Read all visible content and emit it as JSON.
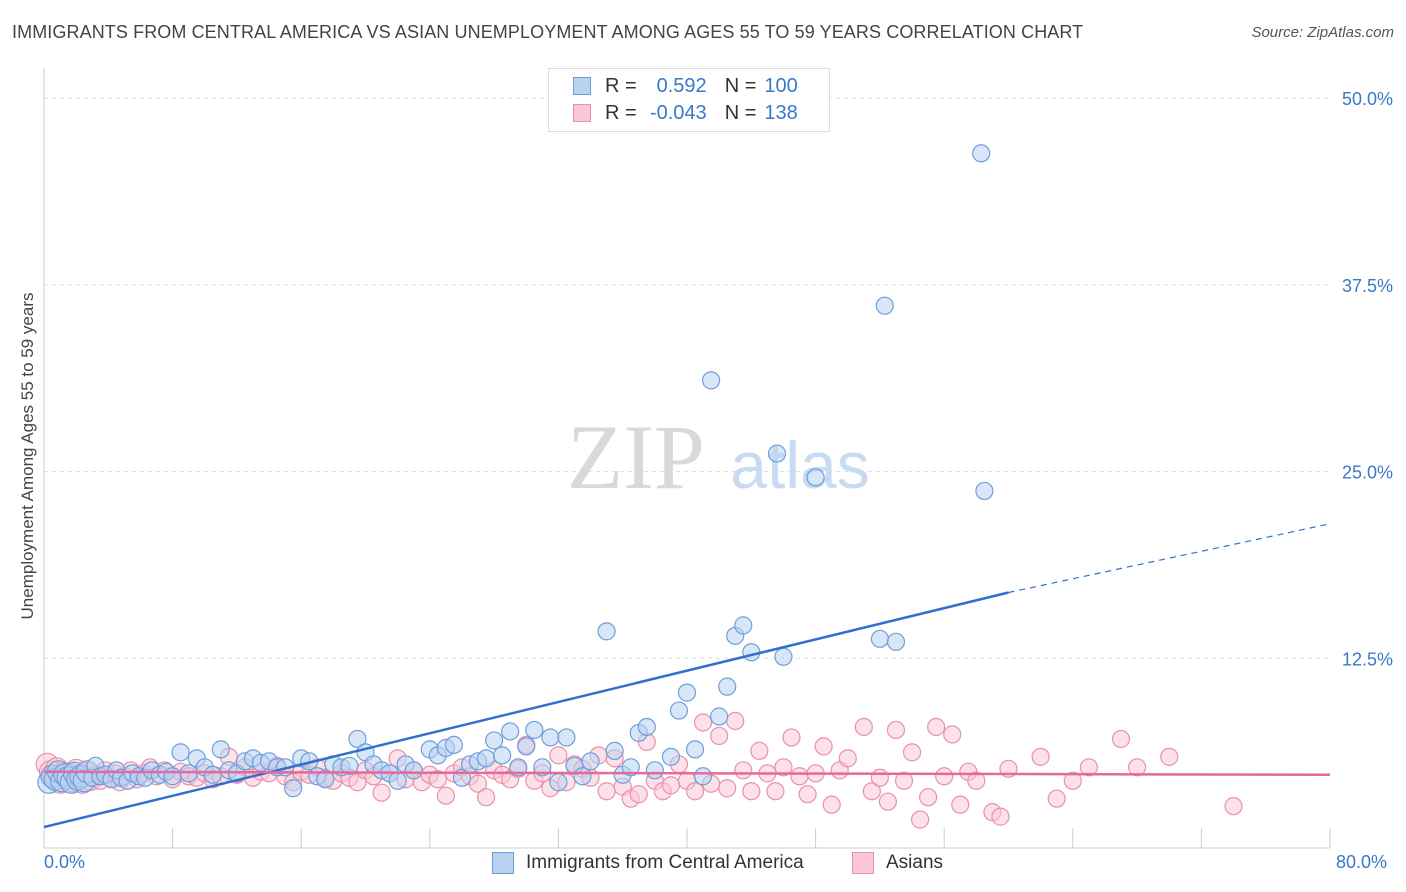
{
  "title": "IMMIGRANTS FROM CENTRAL AMERICA VS ASIAN UNEMPLOYMENT AMONG AGES 55 TO 59 YEARS CORRELATION CHART",
  "source": "Source: ZipAtlas.com",
  "watermark": {
    "zip": "ZIP",
    "atlas": "atlas"
  },
  "legend": {
    "r_label": "R =",
    "n_label": "N =",
    "series": [
      {
        "name": "Immigrants from Central America",
        "r": "0.592",
        "n": "100"
      },
      {
        "name": "Asians",
        "r": "-0.043",
        "n": "138"
      }
    ]
  },
  "colors": {
    "blue_fill": "#b9d2f2",
    "blue_stroke": "#6d9fdb",
    "blue_line": "#2f6fce",
    "pink_fill": "#f9c8d6",
    "pink_stroke": "#e990ab",
    "pink_line": "#e5699a",
    "tick_text": "#3a78c8",
    "grid": "#dddddd"
  },
  "chart_data": {
    "type": "scatter",
    "title": "IMMIGRANTS FROM CENTRAL AMERICA VS ASIAN UNEMPLOYMENT AMONG AGES 55 TO 59 YEARS CORRELATION CHART",
    "xlabel": "",
    "ylabel": "Unemployment Among Ages 55 to 59 years",
    "xlim": [
      0,
      80
    ],
    "ylim": [
      0,
      52
    ],
    "x_tick_labels": [
      "0.0%",
      "80.0%"
    ],
    "y_ticks": [
      12.5,
      25.0,
      37.5,
      50.0
    ],
    "y_tick_labels": [
      "12.5%",
      "25.0%",
      "37.5%",
      "50.0%"
    ],
    "grid": true,
    "series": [
      {
        "name": "Immigrants from Central America",
        "color": "blue",
        "points": [
          [
            0.3,
            4.2
          ],
          [
            0.5,
            4.6
          ],
          [
            0.7,
            4.4
          ],
          [
            0.9,
            4.9
          ],
          [
            1.1,
            4.3
          ],
          [
            1.3,
            4.7
          ],
          [
            1.5,
            4.5
          ],
          [
            1.7,
            4.2
          ],
          [
            1.9,
            4.8
          ],
          [
            2.1,
            4.4
          ],
          [
            2.3,
            4.6
          ],
          [
            2.5,
            4.3
          ],
          [
            2.7,
            4.9
          ],
          [
            3.0,
            4.5
          ],
          [
            3.2,
            5.3
          ],
          [
            3.5,
            4.6
          ],
          [
            3.8,
            4.7
          ],
          [
            4.2,
            4.4
          ],
          [
            4.5,
            5.0
          ],
          [
            4.8,
            4.5
          ],
          [
            5.2,
            4.3
          ],
          [
            5.5,
            4.8
          ],
          [
            5.9,
            4.6
          ],
          [
            6.3,
            4.5
          ],
          [
            6.7,
            5.0
          ],
          [
            7.2,
            4.7
          ],
          [
            7.6,
            4.9
          ],
          [
            8.0,
            4.6
          ],
          [
            8.5,
            6.2
          ],
          [
            9.0,
            4.8
          ],
          [
            9.5,
            5.8
          ],
          [
            10.0,
            5.2
          ],
          [
            10.5,
            4.7
          ],
          [
            11.0,
            6.4
          ],
          [
            11.5,
            5.0
          ],
          [
            12.0,
            4.8
          ],
          [
            12.5,
            5.6
          ],
          [
            13.0,
            5.8
          ],
          [
            13.5,
            5.5
          ],
          [
            14.0,
            5.6
          ],
          [
            14.5,
            5.2
          ],
          [
            15.0,
            5.2
          ],
          [
            15.5,
            3.8
          ],
          [
            16.0,
            5.8
          ],
          [
            16.5,
            5.6
          ],
          [
            17.0,
            4.6
          ],
          [
            17.5,
            4.4
          ],
          [
            18.0,
            5.4
          ],
          [
            18.5,
            5.2
          ],
          [
            19.0,
            5.3
          ],
          [
            19.5,
            7.1
          ],
          [
            20.0,
            6.2
          ],
          [
            20.5,
            5.4
          ],
          [
            21.0,
            5.0
          ],
          [
            21.5,
            4.8
          ],
          [
            22.0,
            4.3
          ],
          [
            22.5,
            5.4
          ],
          [
            23.0,
            5.0
          ],
          [
            24.0,
            6.4
          ],
          [
            24.5,
            6.0
          ],
          [
            25.0,
            6.5
          ],
          [
            25.5,
            6.7
          ],
          [
            26.0,
            4.5
          ],
          [
            26.5,
            5.4
          ],
          [
            27.0,
            5.6
          ],
          [
            27.5,
            5.8
          ],
          [
            28.0,
            7.0
          ],
          [
            28.5,
            6.0
          ],
          [
            29.0,
            7.6
          ],
          [
            29.5,
            5.2
          ],
          [
            30.0,
            6.6
          ],
          [
            30.5,
            7.7
          ],
          [
            31.0,
            5.2
          ],
          [
            31.5,
            7.2
          ],
          [
            32.0,
            4.2
          ],
          [
            32.5,
            7.2
          ],
          [
            33.0,
            5.3
          ],
          [
            33.5,
            4.6
          ],
          [
            34.0,
            5.6
          ],
          [
            35.0,
            14.3
          ],
          [
            35.5,
            6.3
          ],
          [
            36.0,
            4.7
          ],
          [
            36.5,
            5.2
          ],
          [
            37.0,
            7.5
          ],
          [
            37.5,
            7.9
          ],
          [
            38.0,
            5.0
          ],
          [
            39.0,
            5.9
          ],
          [
            39.5,
            9.0
          ],
          [
            40.0,
            10.2
          ],
          [
            40.5,
            6.4
          ],
          [
            41.0,
            4.6
          ],
          [
            41.5,
            31.1
          ],
          [
            42.0,
            8.6
          ],
          [
            42.5,
            10.6
          ],
          [
            43.0,
            14.0
          ],
          [
            44.0,
            12.9
          ],
          [
            46.0,
            12.6
          ],
          [
            48.0,
            24.6
          ],
          [
            52.0,
            13.8
          ],
          [
            53.0,
            13.6
          ]
        ],
        "outliers": [
          [
            58.3,
            46.3
          ],
          [
            52.3,
            36.1
          ],
          [
            45.6,
            26.2
          ],
          [
            58.5,
            23.7
          ],
          [
            43.5,
            14.7
          ]
        ],
        "trend": {
          "x_start": 0,
          "y_start": 1.2,
          "x_end": 60,
          "y_end": 16.9,
          "dashed_to_x": 80,
          "dashed_to_y": 21.5
        }
      },
      {
        "name": "Asians",
        "color": "pink",
        "points": [
          [
            0.2,
            5.4
          ],
          [
            0.4,
            4.9
          ],
          [
            0.6,
            4.6
          ],
          [
            0.8,
            5.1
          ],
          [
            1.0,
            4.2
          ],
          [
            1.2,
            4.8
          ],
          [
            1.4,
            4.5
          ],
          [
            1.6,
            4.7
          ],
          [
            1.8,
            4.3
          ],
          [
            2.0,
            5.0
          ],
          [
            2.2,
            4.6
          ],
          [
            2.4,
            4.2
          ],
          [
            2.6,
            4.8
          ],
          [
            2.9,
            4.4
          ],
          [
            3.2,
            4.7
          ],
          [
            3.5,
            4.3
          ],
          [
            3.8,
            5.0
          ],
          [
            4.1,
            4.5
          ],
          [
            4.4,
            4.8
          ],
          [
            4.7,
            4.2
          ],
          [
            5.0,
            4.6
          ],
          [
            5.4,
            5.0
          ],
          [
            5.8,
            4.4
          ],
          [
            6.2,
            4.8
          ],
          [
            6.6,
            5.2
          ],
          [
            7.0,
            4.6
          ],
          [
            7.5,
            5.0
          ],
          [
            8.0,
            4.4
          ],
          [
            8.5,
            4.9
          ],
          [
            9.0,
            4.6
          ],
          [
            9.5,
            4.5
          ],
          [
            10.0,
            4.8
          ],
          [
            10.5,
            4.4
          ],
          [
            11.0,
            4.6
          ],
          [
            11.5,
            5.9
          ],
          [
            12.0,
            4.7
          ],
          [
            12.5,
            5.2
          ],
          [
            13.0,
            4.5
          ],
          [
            13.5,
            4.9
          ],
          [
            14.0,
            4.8
          ],
          [
            14.5,
            5.3
          ],
          [
            15.0,
            4.6
          ],
          [
            15.5,
            4.2
          ],
          [
            16.0,
            4.9
          ],
          [
            16.5,
            4.7
          ],
          [
            17.0,
            5.2
          ],
          [
            17.5,
            4.5
          ],
          [
            18.0,
            4.3
          ],
          [
            18.5,
            4.8
          ],
          [
            19.0,
            4.5
          ],
          [
            19.5,
            4.2
          ],
          [
            20.0,
            5.0
          ],
          [
            20.5,
            4.6
          ],
          [
            21.0,
            3.5
          ],
          [
            21.5,
            4.8
          ],
          [
            22.0,
            5.8
          ],
          [
            22.5,
            4.4
          ],
          [
            23.0,
            5.0
          ],
          [
            23.5,
            4.2
          ],
          [
            24.0,
            4.7
          ],
          [
            24.5,
            4.4
          ],
          [
            25.0,
            3.3
          ],
          [
            25.5,
            4.8
          ],
          [
            26.0,
            5.2
          ],
          [
            26.5,
            4.6
          ],
          [
            27.0,
            4.1
          ],
          [
            27.5,
            3.2
          ],
          [
            28.0,
            5.0
          ],
          [
            28.5,
            4.7
          ],
          [
            29.0,
            4.4
          ],
          [
            29.5,
            5.1
          ],
          [
            30.0,
            6.7
          ],
          [
            30.5,
            4.3
          ],
          [
            31.0,
            4.8
          ],
          [
            31.5,
            3.8
          ],
          [
            32.0,
            6.0
          ],
          [
            32.5,
            4.2
          ],
          [
            33.0,
            5.4
          ],
          [
            33.5,
            5.1
          ],
          [
            34.0,
            4.5
          ],
          [
            34.5,
            6.0
          ],
          [
            35.0,
            3.6
          ],
          [
            35.5,
            5.8
          ],
          [
            36.0,
            3.9
          ],
          [
            36.5,
            3.1
          ],
          [
            37.0,
            3.4
          ],
          [
            37.5,
            6.9
          ],
          [
            38.0,
            4.3
          ],
          [
            38.5,
            3.6
          ],
          [
            39.0,
            4.0
          ],
          [
            39.5,
            5.4
          ],
          [
            40.0,
            4.3
          ],
          [
            40.5,
            3.6
          ],
          [
            41.0,
            8.2
          ],
          [
            41.5,
            4.1
          ],
          [
            42.0,
            7.3
          ],
          [
            42.5,
            3.8
          ],
          [
            43.0,
            8.3
          ],
          [
            43.5,
            5.0
          ],
          [
            44.0,
            3.6
          ],
          [
            44.5,
            6.3
          ],
          [
            45.0,
            4.8
          ],
          [
            45.5,
            3.6
          ],
          [
            46.0,
            5.2
          ],
          [
            46.5,
            7.2
          ],
          [
            47.0,
            4.6
          ],
          [
            47.5,
            3.4
          ],
          [
            48.0,
            4.8
          ],
          [
            48.5,
            6.6
          ],
          [
            49.0,
            2.7
          ],
          [
            49.5,
            5.0
          ],
          [
            50.0,
            5.8
          ],
          [
            51.0,
            7.9
          ],
          [
            51.5,
            3.6
          ],
          [
            52.0,
            4.5
          ],
          [
            52.5,
            2.9
          ],
          [
            53.0,
            7.7
          ],
          [
            53.5,
            4.3
          ],
          [
            54.0,
            6.2
          ],
          [
            54.5,
            1.7
          ],
          [
            55.0,
            3.2
          ],
          [
            55.5,
            7.9
          ],
          [
            56.0,
            4.6
          ],
          [
            56.5,
            7.4
          ],
          [
            57.0,
            2.7
          ],
          [
            57.5,
            4.9
          ],
          [
            58.0,
            4.3
          ],
          [
            59.0,
            2.2
          ],
          [
            59.5,
            1.9
          ],
          [
            60.0,
            5.1
          ],
          [
            62.0,
            5.9
          ],
          [
            63.0,
            3.1
          ],
          [
            64.0,
            4.3
          ],
          [
            65.0,
            5.2
          ],
          [
            67.0,
            7.1
          ],
          [
            68.0,
            5.2
          ],
          [
            70.0,
            5.9
          ],
          [
            74.0,
            2.6
          ]
        ],
        "trend": {
          "x_start": 0,
          "y_start": 4.9,
          "x_end": 80,
          "y_end": 4.7
        }
      }
    ]
  }
}
